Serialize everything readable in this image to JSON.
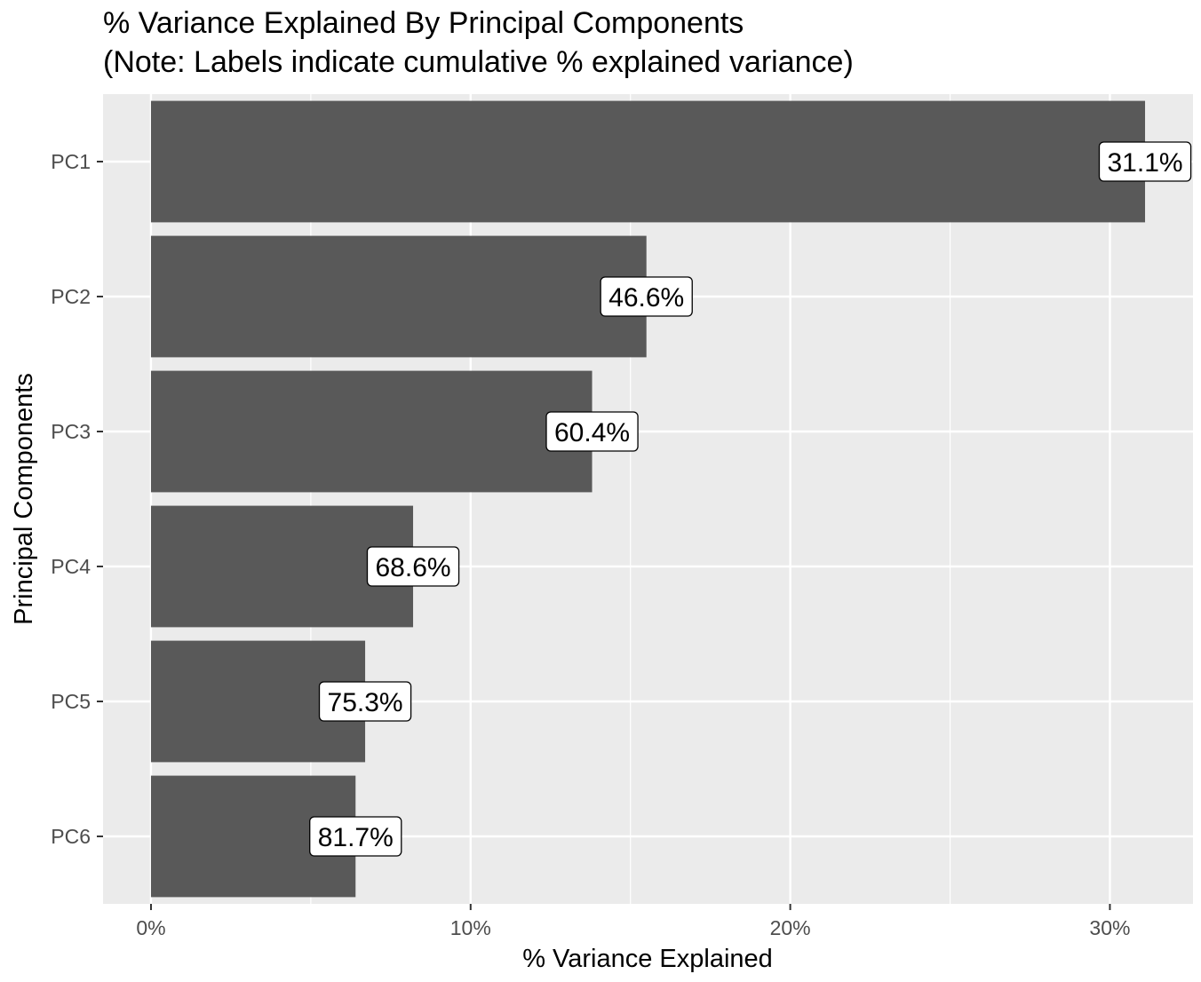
{
  "chart_data": {
    "type": "bar",
    "orientation": "horizontal",
    "title": "% Variance Explained By Principal Components",
    "subtitle": "(Note: Labels indicate cumulative % explained variance)",
    "xlabel": "% Variance Explained",
    "ylabel": "Principal Components",
    "categories": [
      "PC1",
      "PC2",
      "PC3",
      "PC4",
      "PC5",
      "PC6"
    ],
    "values": [
      31.1,
      15.5,
      13.8,
      8.2,
      6.7,
      6.4
    ],
    "data_labels": [
      "31.1%",
      "46.6%",
      "60.4%",
      "68.6%",
      "75.3%",
      "81.7%"
    ],
    "xlim": [
      -1.5,
      32.6
    ],
    "x_ticks": [
      0,
      10,
      20,
      30
    ],
    "x_tick_labels": [
      "0%",
      "10%",
      "20%",
      "30%"
    ],
    "grid": true,
    "legend": "none",
    "colors": {
      "bar": "#595959",
      "panel": "#ebebeb",
      "grid": "#ffffff",
      "label_fill": "#ffffff"
    }
  }
}
